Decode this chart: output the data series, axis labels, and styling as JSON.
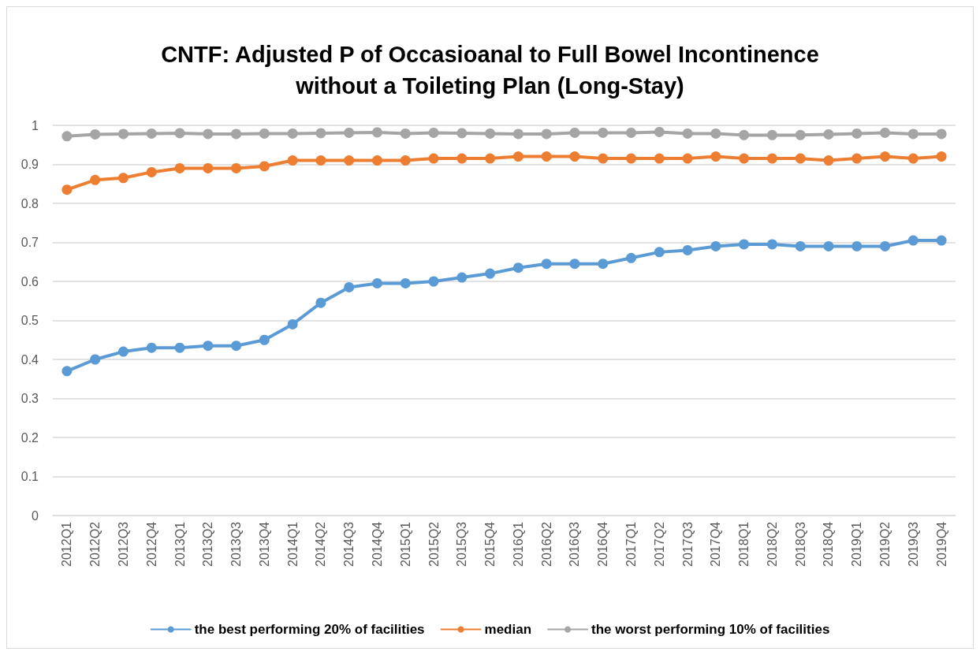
{
  "chart_data": {
    "type": "line",
    "title": "CNTF: Adjusted P of Occasioanal to Full Bowel Incontinence\nwithout a Toileting Plan (Long-Stay)",
    "categories": [
      "2012Q1",
      "2012Q2",
      "2012Q3",
      "2012Q4",
      "2013Q1",
      "2013Q2",
      "2013Q3",
      "2013Q4",
      "2014Q1",
      "2014Q2",
      "2014Q3",
      "2014Q4",
      "2015Q1",
      "2015Q2",
      "2015Q3",
      "2015Q4",
      "2016Q1",
      "2016Q2",
      "2016Q3",
      "2016Q4",
      "2017Q1",
      "2017Q2",
      "2017Q3",
      "2017Q4",
      "2018Q1",
      "2018Q2",
      "2018Q3",
      "2018Q4",
      "2019Q1",
      "2019Q2",
      "2019Q3",
      "2019Q4"
    ],
    "series": [
      {
        "name": "the best performing 20% of facilities",
        "color": "#5b9bd5",
        "values": [
          0.37,
          0.4,
          0.42,
          0.43,
          0.43,
          0.435,
          0.435,
          0.45,
          0.49,
          0.545,
          0.585,
          0.595,
          0.595,
          0.6,
          0.61,
          0.62,
          0.635,
          0.645,
          0.645,
          0.645,
          0.66,
          0.675,
          0.68,
          0.69,
          0.695,
          0.695,
          0.69,
          0.69,
          0.69,
          0.69,
          0.705,
          0.705
        ]
      },
      {
        "name": "median",
        "color": "#ed7d31",
        "values": [
          0.835,
          0.86,
          0.865,
          0.88,
          0.89,
          0.89,
          0.89,
          0.895,
          0.91,
          0.91,
          0.91,
          0.91,
          0.91,
          0.915,
          0.915,
          0.915,
          0.92,
          0.92,
          0.92,
          0.915,
          0.915,
          0.915,
          0.915,
          0.92,
          0.915,
          0.915,
          0.915,
          0.91,
          0.915,
          0.92,
          0.915,
          0.92
        ]
      },
      {
        "name": "the worst performing 10% of facilities",
        "color": "#a5a5a5",
        "values": [
          0.972,
          0.977,
          0.978,
          0.979,
          0.98,
          0.978,
          0.978,
          0.979,
          0.979,
          0.98,
          0.981,
          0.982,
          0.979,
          0.981,
          0.98,
          0.979,
          0.978,
          0.978,
          0.981,
          0.981,
          0.981,
          0.983,
          0.979,
          0.979,
          0.975,
          0.975,
          0.975,
          0.977,
          0.979,
          0.981,
          0.978,
          0.978
        ]
      }
    ],
    "ylim": [
      0,
      1
    ],
    "yticks": [
      0,
      0.1,
      0.2,
      0.3,
      0.4,
      0.5,
      0.6,
      0.7,
      0.8,
      0.9,
      1
    ],
    "grid": "y",
    "legend": "bottom",
    "marker": "circle",
    "line_style": "solid"
  }
}
